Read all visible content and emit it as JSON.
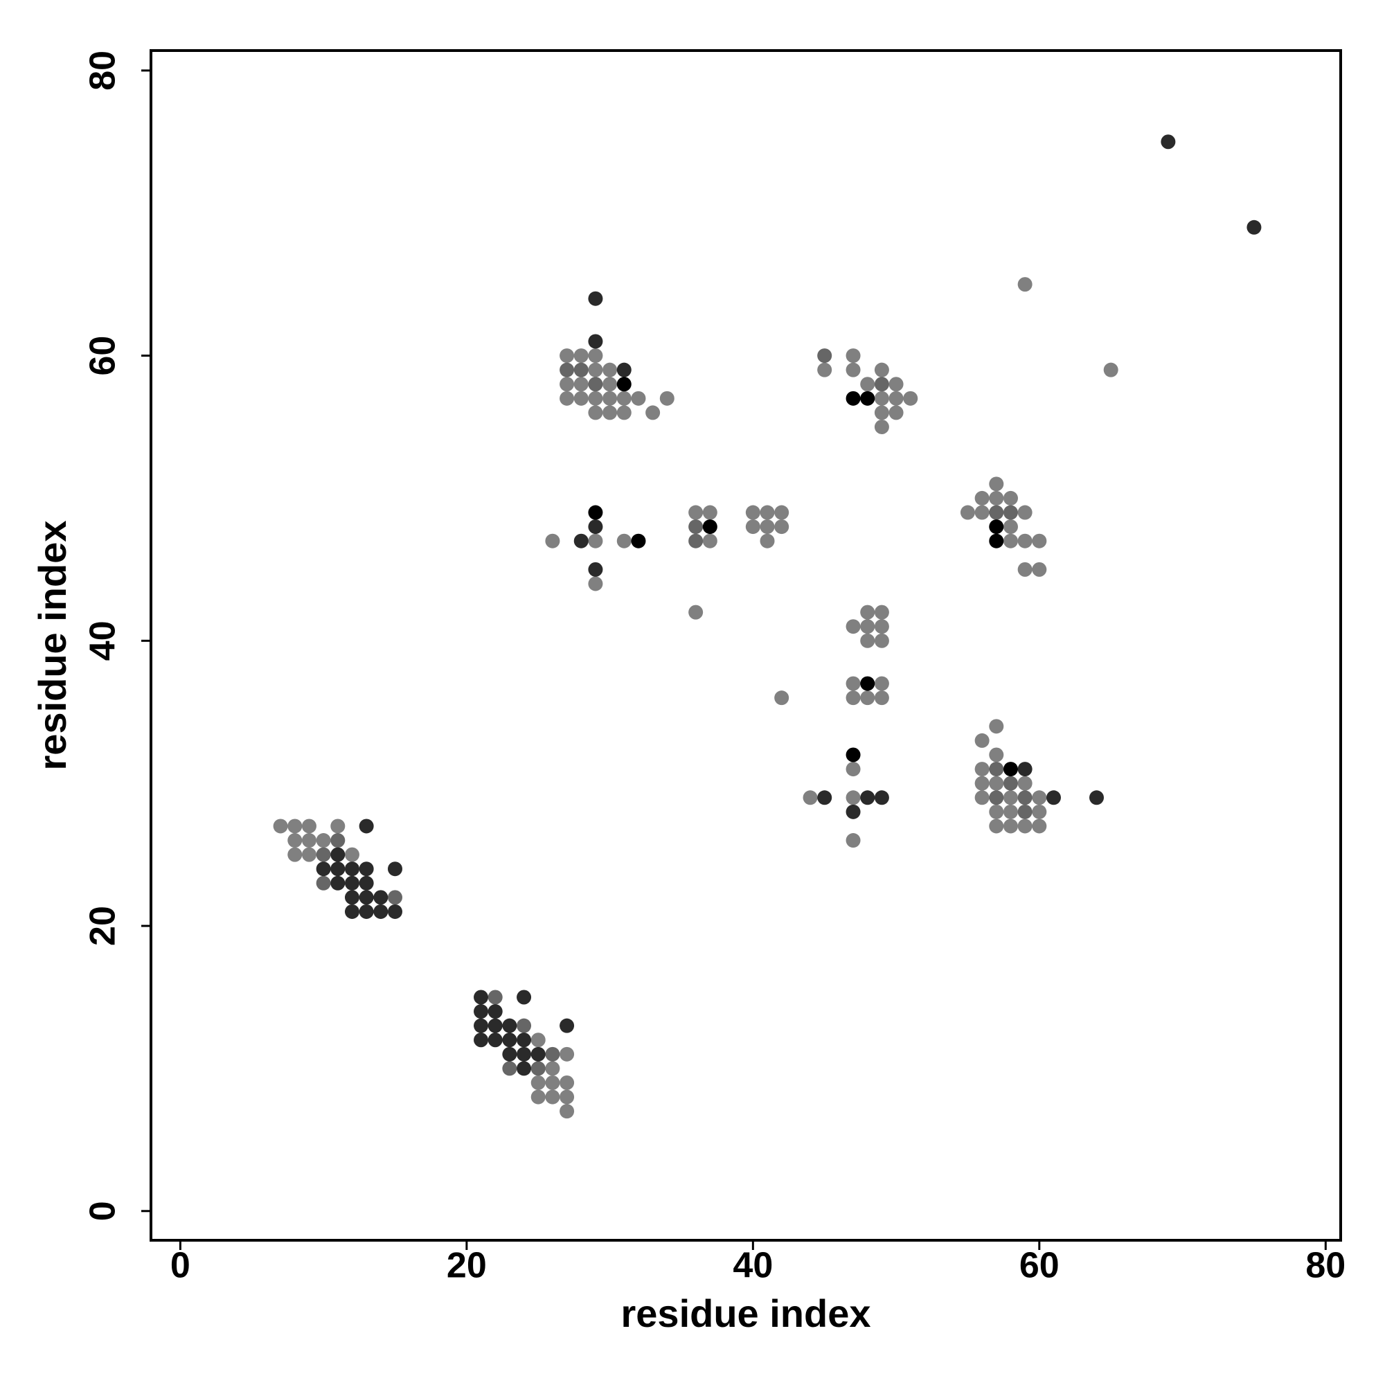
{
  "chart_data": {
    "type": "scatter",
    "x_label": "residue index",
    "y_label": "residue index",
    "xlim": [
      -2.05,
      81.05
    ],
    "ylim": [
      -2.05,
      81.4
    ],
    "xticks": [
      0,
      20,
      40,
      60,
      80
    ],
    "yticks": [
      0,
      20,
      40,
      60,
      80
    ],
    "grid": false,
    "series": [
      {
        "color": "#808080",
        "x": [
          7,
          8,
          9,
          11,
          8,
          9,
          10,
          8,
          9,
          12,
          25,
          27,
          26,
          25,
          26,
          27,
          25,
          26,
          27,
          27,
          27,
          28,
          29,
          29,
          30,
          27,
          28,
          30,
          27,
          28,
          29,
          30,
          31,
          32,
          34,
          29,
          30,
          31,
          33,
          26,
          29,
          31,
          29,
          36,
          37,
          37,
          36,
          40,
          41,
          42,
          40,
          41,
          42,
          41,
          42,
          47,
          45,
          47,
          49,
          48,
          50,
          49,
          50,
          51,
          49,
          50,
          49,
          48,
          49,
          47,
          48,
          49,
          48,
          49,
          47,
          49,
          47,
          48,
          49,
          47,
          44,
          47,
          47,
          57,
          56,
          57,
          58,
          55,
          56,
          59,
          58,
          58,
          59,
          60,
          59,
          60,
          57,
          56,
          57,
          56,
          56,
          57,
          59,
          56,
          58,
          60,
          57,
          58,
          60,
          57,
          58,
          59,
          60,
          59,
          65
        ],
        "y": [
          27,
          27,
          27,
          27,
          26,
          26,
          26,
          25,
          25,
          25,
          12,
          11,
          10,
          9,
          9,
          9,
          8,
          8,
          8,
          7,
          60,
          60,
          60,
          59,
          59,
          58,
          58,
          58,
          57,
          57,
          57,
          57,
          57,
          57,
          57,
          56,
          56,
          56,
          56,
          47,
          47,
          47,
          44,
          49,
          49,
          47,
          42,
          49,
          49,
          49,
          48,
          48,
          48,
          47,
          36,
          60,
          59,
          59,
          59,
          58,
          58,
          57,
          57,
          57,
          56,
          56,
          55,
          42,
          42,
          41,
          41,
          41,
          40,
          40,
          37,
          37,
          36,
          36,
          36,
          31,
          29,
          29,
          26,
          51,
          50,
          50,
          50,
          49,
          49,
          49,
          48,
          47,
          47,
          47,
          45,
          45,
          34,
          33,
          32,
          31,
          30,
          30,
          30,
          29,
          29,
          29,
          28,
          28,
          28,
          27,
          27,
          27,
          27,
          65,
          59
        ]
      },
      {
        "color": "#666666",
        "x": [
          11,
          10,
          10,
          15,
          22,
          24,
          26,
          23,
          25,
          27,
          28,
          29,
          36,
          36,
          45,
          49,
          57,
          58,
          57,
          58,
          57,
          59,
          59
        ],
        "y": [
          26,
          25,
          23,
          22,
          15,
          13,
          11,
          10,
          10,
          59,
          59,
          58,
          48,
          47,
          60,
          58,
          49,
          49,
          31,
          30,
          29,
          29,
          28
        ]
      },
      {
        "color": "#2a2a2a",
        "x": [
          13,
          11,
          10,
          11,
          12,
          13,
          15,
          11,
          12,
          13,
          12,
          13,
          14,
          12,
          13,
          14,
          15,
          21,
          24,
          21,
          22,
          21,
          22,
          23,
          27,
          21,
          22,
          23,
          24,
          23,
          24,
          25,
          24,
          29,
          29,
          31,
          29,
          28,
          29,
          45,
          48,
          49,
          47,
          59,
          61,
          64,
          69,
          75
        ],
        "y": [
          27,
          25,
          24,
          24,
          24,
          24,
          24,
          23,
          23,
          23,
          22,
          22,
          22,
          21,
          21,
          21,
          21,
          15,
          15,
          14,
          14,
          13,
          13,
          13,
          13,
          12,
          12,
          12,
          12,
          11,
          11,
          11,
          10,
          64,
          61,
          59,
          48,
          47,
          45,
          29,
          29,
          29,
          28,
          31,
          29,
          29,
          75,
          69
        ]
      },
      {
        "color": "#000000",
        "x": [
          31,
          29,
          32,
          37,
          47,
          48,
          48,
          47,
          57,
          57,
          58
        ],
        "y": [
          58,
          49,
          47,
          48,
          57,
          57,
          37,
          32,
          48,
          47,
          31
        ]
      }
    ]
  }
}
